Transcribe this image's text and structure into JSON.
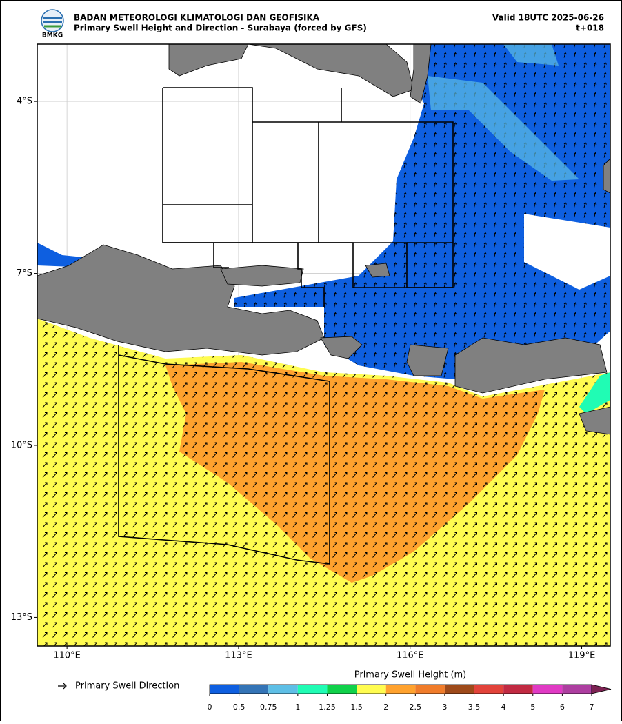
{
  "header": {
    "org": "BADAN METEOROLOGI KLIMATOLOGI DAN GEOFISIKA",
    "title": "Primary Swell Height and Direction - Surabaya (forced by GFS)",
    "valid": "Valid 18UTC 2025-06-26",
    "lead": "t+018",
    "logo_text": "BMKG"
  },
  "map": {
    "xlim": [
      109.48,
      119.5
    ],
    "ylim": [
      -13.5,
      -3.0
    ],
    "xticks": [
      {
        "value": 110,
        "label": "110°E"
      },
      {
        "value": 113,
        "label": "113°E"
      },
      {
        "value": 116,
        "label": "116°E"
      },
      {
        "value": 119,
        "label": "119°E"
      }
    ],
    "yticks": [
      {
        "value": -4,
        "label": "4°S"
      },
      {
        "value": -7,
        "label": "7°S"
      },
      {
        "value": -10,
        "label": "10°S"
      },
      {
        "value": -13,
        "label": "13°S"
      }
    ],
    "grid": true
  },
  "legend": {
    "arrow_label": "Primary Swell Direction"
  },
  "colorbar": {
    "title": "Primary Swell Height (m)",
    "levels": [
      0,
      0.5,
      0.75,
      1,
      1.25,
      1.5,
      2,
      2.5,
      3,
      3.5,
      4,
      5,
      6,
      7
    ],
    "colors": [
      "#0e5fe0",
      "#3474b6",
      "#5ebfe6",
      "#20fcb4",
      "#10d14a",
      "#fffc50",
      "#ffa22e",
      "#f07c2a",
      "#9e4a1a",
      "#e2433a",
      "#c12a42",
      "#e03ac4",
      "#ad3ea0"
    ],
    "extend_color": "#7c2252"
  }
}
